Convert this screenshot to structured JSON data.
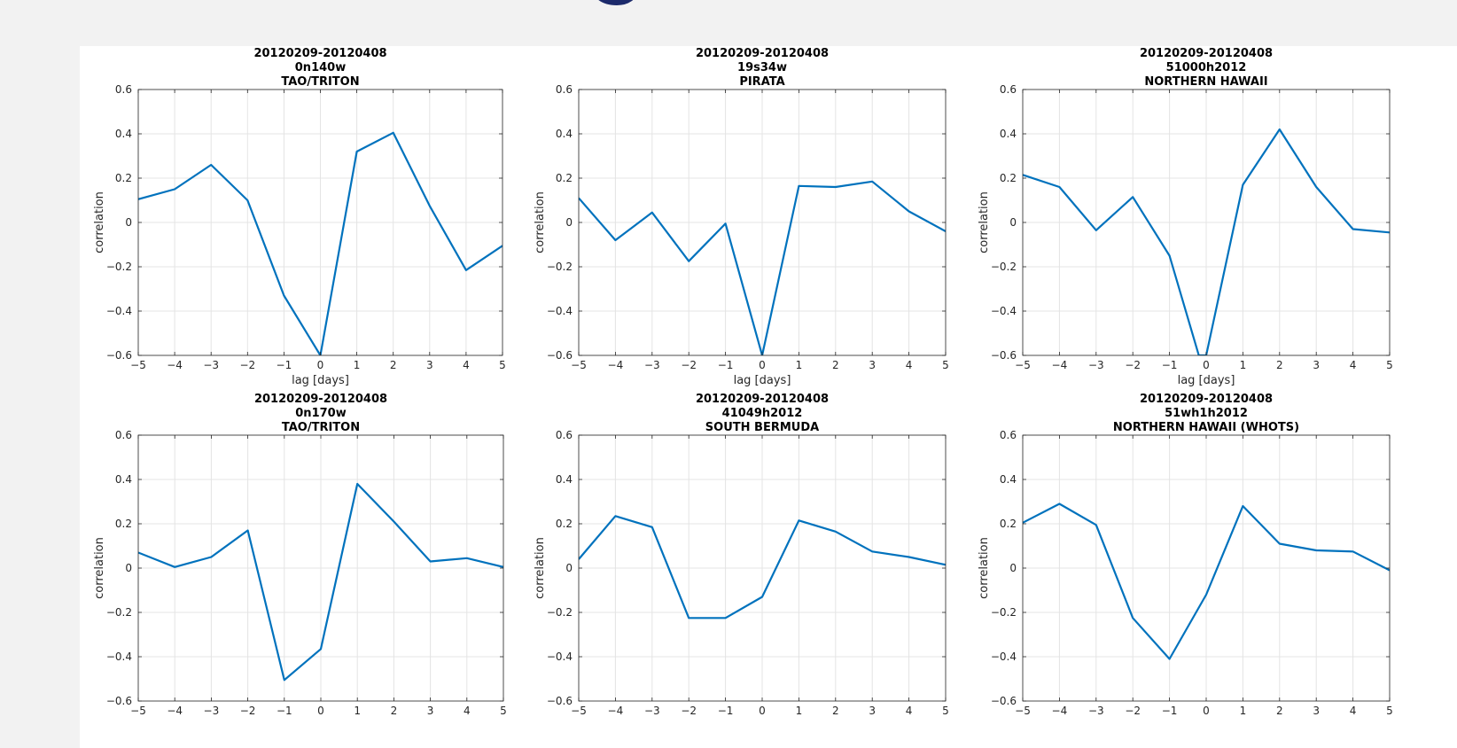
{
  "colors": {
    "line": "#0072bd",
    "grid": "#e4e4e4",
    "axis": "#262626",
    "background": "#f2f2f2",
    "panel": "#ffffff",
    "glyph": "#1c2a6b"
  },
  "chart_data": [
    {
      "type": "line",
      "title": [
        "20120209-20120408",
        "0n140w",
        "TAO/TRITON"
      ],
      "xlabel": "lag [days]",
      "ylabel": "correlation",
      "xlim": [
        -5,
        5
      ],
      "ylim": [
        -0.6,
        0.6
      ],
      "grid": true,
      "x": [
        -5,
        -4,
        -3,
        -2,
        -1,
        0,
        1,
        2,
        3,
        4,
        5
      ],
      "y": [
        0.105,
        0.15,
        0.26,
        0.1,
        -0.33,
        -0.6,
        0.32,
        0.405,
        0.075,
        -0.215,
        -0.105
      ],
      "xticks": [
        "−5",
        "−4",
        "−3",
        "−2",
        "−1",
        "0",
        "1",
        "2",
        "3",
        "4",
        "5"
      ],
      "yticks": [
        "0.6",
        "0.4",
        "0.2",
        "0",
        "−0.2",
        "−0.4",
        "−0.6"
      ]
    },
    {
      "type": "line",
      "title": [
        "20120209-20120408",
        "19s34w",
        "PIRATA"
      ],
      "xlabel": "lag [days]",
      "ylabel": "correlation",
      "xlim": [
        -5,
        5
      ],
      "ylim": [
        -0.6,
        0.6
      ],
      "grid": true,
      "x": [
        -5,
        -4,
        -3,
        -2,
        -1,
        0,
        1,
        2,
        3,
        4,
        5
      ],
      "y": [
        0.11,
        -0.08,
        0.045,
        -0.175,
        -0.005,
        -0.6,
        0.165,
        0.16,
        0.185,
        0.05,
        -0.04
      ],
      "xticks": [
        "−5",
        "−4",
        "−3",
        "−2",
        "−1",
        "0",
        "1",
        "2",
        "3",
        "4",
        "5"
      ],
      "yticks": [
        "0.6",
        "0.4",
        "0.2",
        "0",
        "−0.2",
        "−0.4",
        "−0.6"
      ]
    },
    {
      "type": "line",
      "title": [
        "20120209-20120408",
        "51000h2012",
        "NORTHERN HAWAII"
      ],
      "xlabel": "lag [days]",
      "ylabel": "correlation",
      "xlim": [
        -5,
        5
      ],
      "ylim": [
        -0.6,
        0.6
      ],
      "grid": true,
      "x": [
        -5,
        -4,
        -3,
        -2,
        -1,
        -0.2,
        0,
        1,
        2,
        3,
        4,
        5
      ],
      "y": [
        0.215,
        0.16,
        -0.035,
        0.115,
        -0.15,
        -0.6,
        -0.6,
        0.17,
        0.42,
        0.16,
        -0.03,
        -0.045
      ],
      "xticks": [
        "−5",
        "−4",
        "−3",
        "−2",
        "−1",
        "0",
        "1",
        "2",
        "3",
        "4",
        "5"
      ],
      "yticks": [
        "0.6",
        "0.4",
        "0.2",
        "0",
        "−0.2",
        "−0.4",
        "−0.6"
      ]
    },
    {
      "type": "line",
      "title": [
        "20120209-20120408",
        "0n170w",
        "TAO/TRITON"
      ],
      "xlabel": "",
      "ylabel": "correlation",
      "xlim": [
        -5,
        5
      ],
      "ylim": [
        -0.6,
        0.6
      ],
      "grid": true,
      "x": [
        -5,
        -4,
        -3,
        -2,
        -1,
        0,
        1,
        2,
        3,
        4,
        5
      ],
      "y": [
        0.07,
        0.005,
        0.05,
        0.17,
        -0.505,
        -0.365,
        0.38,
        0.21,
        0.03,
        0.045,
        0.005
      ],
      "xticks": [
        "−5",
        "−4",
        "−3",
        "−2",
        "−1",
        "0",
        "1",
        "2",
        "3",
        "4",
        "5"
      ],
      "yticks": [
        "0.6",
        "0.4",
        "0.2",
        "0",
        "−0.2",
        "−0.4",
        "−0.6"
      ]
    },
    {
      "type": "line",
      "title": [
        "20120209-20120408",
        "41049h2012",
        "SOUTH BERMUDA"
      ],
      "xlabel": "",
      "ylabel": "correlation",
      "xlim": [
        -5,
        5
      ],
      "ylim": [
        -0.6,
        0.6
      ],
      "grid": true,
      "x": [
        -5,
        -4,
        -3,
        -2,
        -1,
        0,
        1,
        2,
        3,
        4,
        5
      ],
      "y": [
        0.04,
        0.235,
        0.185,
        -0.225,
        -0.225,
        -0.13,
        0.215,
        0.165,
        0.075,
        0.05,
        0.015
      ],
      "xticks": [
        "−5",
        "−4",
        "−3",
        "−2",
        "−1",
        "0",
        "1",
        "2",
        "3",
        "4",
        "5"
      ],
      "yticks": [
        "0.6",
        "0.4",
        "0.2",
        "0",
        "−0.2",
        "−0.4",
        "−0.6"
      ]
    },
    {
      "type": "line",
      "title": [
        "20120209-20120408",
        "51wh1h2012",
        "NORTHERN HAWAII (WHOTS)"
      ],
      "xlabel": "",
      "ylabel": "correlation",
      "xlim": [
        -5,
        5
      ],
      "ylim": [
        -0.6,
        0.6
      ],
      "grid": true,
      "x": [
        -5,
        -4,
        -3,
        -2,
        -1,
        0,
        1,
        2,
        3,
        4,
        5
      ],
      "y": [
        0.205,
        0.29,
        0.195,
        -0.225,
        -0.41,
        -0.12,
        0.28,
        0.11,
        0.08,
        0.075,
        -0.01
      ],
      "xticks": [
        "−5",
        "−4",
        "−3",
        "−2",
        "−1",
        "0",
        "1",
        "2",
        "3",
        "4",
        "5"
      ],
      "yticks": [
        "0.6",
        "0.4",
        "0.2",
        "0",
        "−0.2",
        "−0.4",
        "−0.6"
      ]
    }
  ]
}
